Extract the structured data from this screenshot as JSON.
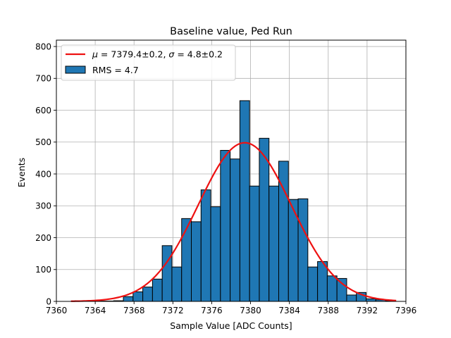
{
  "chart_data": {
    "type": "bar",
    "title": "Baseline value, Ped Run",
    "xlabel": "Sample Value [ADC Counts]",
    "ylabel": "Events",
    "xlim": [
      7360,
      7396
    ],
    "ylim": [
      0,
      820
    ],
    "xticks": [
      7360,
      7364,
      7368,
      7372,
      7376,
      7380,
      7384,
      7388,
      7392,
      7396
    ],
    "yticks": [
      0,
      100,
      200,
      300,
      400,
      500,
      600,
      700,
      800
    ],
    "grid": true,
    "legend_position": "top-left",
    "bin_edges": [
      7361.9,
      7362.9,
      7363.9,
      7364.9,
      7365.9,
      7366.9,
      7367.9,
      7368.9,
      7369.9,
      7370.9,
      7371.9,
      7372.9,
      7373.9,
      7374.9,
      7375.9,
      7376.9,
      7377.9,
      7378.9,
      7379.9,
      7380.9,
      7381.9,
      7382.9,
      7383.9,
      7384.9,
      7385.9,
      7386.9,
      7387.9,
      7388.9,
      7389.9,
      7390.9,
      7391.9,
      7392.9,
      7393.9,
      7394.9
    ],
    "counts": [
      2,
      0,
      1,
      1,
      2,
      15,
      30,
      45,
      70,
      175,
      108,
      260,
      250,
      350,
      297,
      474,
      447,
      630,
      362,
      512,
      362,
      440,
      320,
      322,
      108,
      125,
      80,
      72,
      20,
      28,
      8,
      5,
      2
    ],
    "series": [
      {
        "name": "RMS = 4.7",
        "kind": "histogram",
        "color": "#1f77b4",
        "edgecolor": "#000000"
      },
      {
        "name": "$\\mu = 7379.4 \\pm 0.2$, $\\sigma = 4.8 \\pm 0.2$",
        "kind": "gaussian-fit",
        "mu": 7379.4,
        "sigma": 4.8,
        "amplitude": 498,
        "x_range": [
          7361.5,
          7395
        ],
        "color": "#ee1111"
      }
    ],
    "legend": {
      "fit_label": {
        "mu_symbol": "μ",
        "eq1": " = 7379.4±0.2, ",
        "sigma_symbol": "σ",
        "eq2": " = 4.8±0.2"
      },
      "hist_label": "RMS = 4.7"
    }
  }
}
